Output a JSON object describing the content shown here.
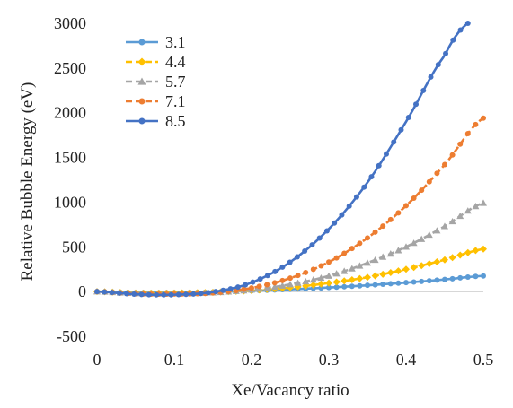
{
  "chart_data": {
    "type": "line",
    "xlabel": "Xe/Vacancy ratio",
    "ylabel": "Relative Bubble Energy (eV)",
    "xlim": [
      0,
      0.5
    ],
    "ylim": [
      -500,
      3000
    ],
    "x_ticks": [
      0,
      0.1,
      0.2,
      0.3,
      0.4,
      0.5
    ],
    "y_ticks": [
      -500,
      0,
      500,
      1000,
      1500,
      2000,
      2500,
      3000
    ],
    "x_tick_labels": [
      "0",
      "0.1",
      "0.2",
      "0.3",
      "0.4",
      "0.5"
    ],
    "y_tick_labels": [
      "-500",
      "0",
      "500",
      "1000",
      "1500",
      "2000",
      "2500",
      "3000"
    ],
    "grid": false,
    "zero_line": true,
    "legend_position": "top-left",
    "series": [
      {
        "name": "3.1",
        "color": "#5b9bd5",
        "marker": "circle",
        "line_style": "solid",
        "x": [
          0,
          0.05,
          0.1,
          0.15,
          0.2,
          0.25,
          0.3,
          0.35,
          0.4,
          0.45,
          0.5
        ],
        "y": [
          0,
          -12,
          -12,
          -5,
          8,
          25,
          45,
          70,
          100,
          135,
          175
        ]
      },
      {
        "name": "4.4",
        "color": "#ffc000",
        "marker": "diamond",
        "line_style": "dashed",
        "x": [
          0,
          0.05,
          0.1,
          0.15,
          0.2,
          0.25,
          0.3,
          0.35,
          0.4,
          0.45,
          0.5
        ],
        "y": [
          0,
          -16,
          -16,
          -8,
          12,
          45,
          95,
          160,
          250,
          355,
          475
        ]
      },
      {
        "name": "5.7",
        "color": "#a5a5a5",
        "marker": "triangle",
        "line_style": "dashed",
        "x": [
          0,
          0.05,
          0.1,
          0.15,
          0.2,
          0.25,
          0.3,
          0.35,
          0.4,
          0.45,
          0.5
        ],
        "y": [
          0,
          -20,
          -22,
          -12,
          20,
          80,
          175,
          320,
          500,
          730,
          990
        ]
      },
      {
        "name": "7.1",
        "color": "#ed7d31",
        "marker": "circle",
        "line_style": "dashed",
        "x": [
          0,
          0.05,
          0.1,
          0.15,
          0.2,
          0.25,
          0.3,
          0.35,
          0.4,
          0.45,
          0.5
        ],
        "y": [
          0,
          -25,
          -28,
          -15,
          40,
          150,
          330,
          600,
          960,
          1420,
          1940
        ]
      },
      {
        "name": "8.5",
        "color": "#4472c4",
        "marker": "circle",
        "line_style": "solid",
        "x": [
          0,
          0.05,
          0.1,
          0.15,
          0.2,
          0.25,
          0.3,
          0.35,
          0.4,
          0.45,
          0.48
        ],
        "y": [
          0,
          -30,
          -35,
          -5,
          100,
          330,
          700,
          1220,
          1900,
          2640,
          3000
        ]
      }
    ]
  }
}
